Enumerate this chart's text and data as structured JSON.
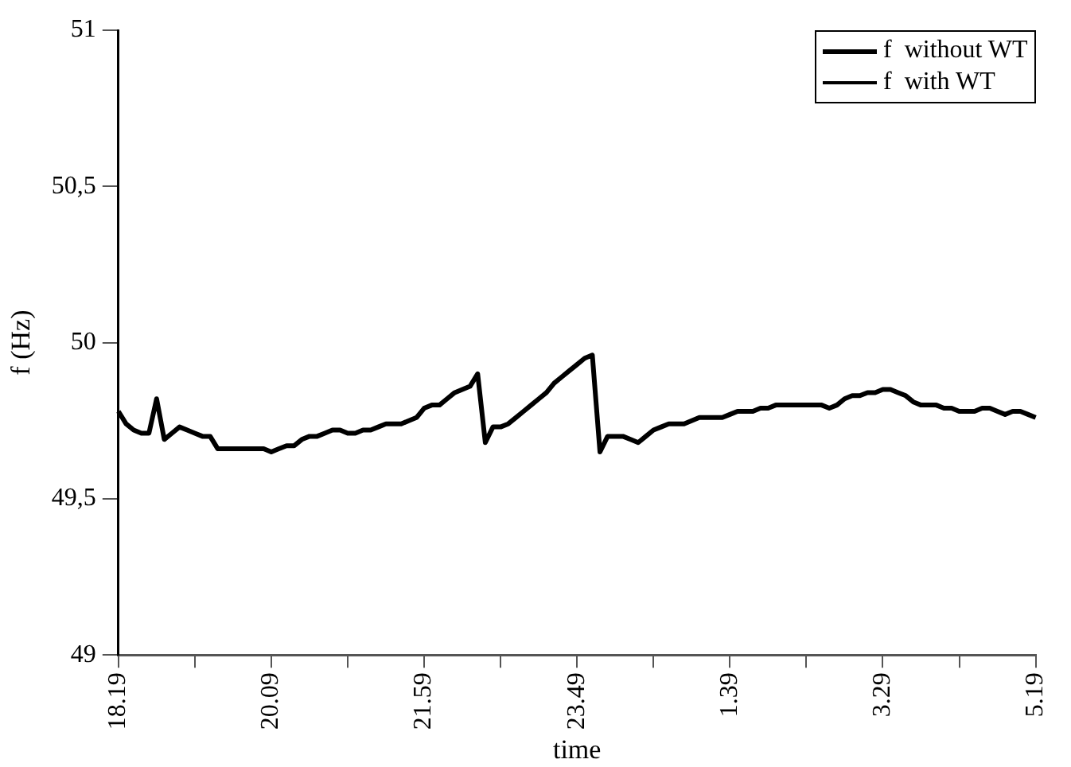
{
  "chart_data": {
    "type": "line",
    "xlabel": "time",
    "ylabel": "f (Hz)",
    "legend": "top right",
    "grid": false,
    "marker": "none",
    "line_style": "solid",
    "ylim": [
      49,
      51
    ],
    "yticks": [
      49,
      {
        "value": 49.5,
        "label": "49,5"
      },
      50,
      {
        "value": 50.5,
        "label": "50,5"
      },
      51
    ],
    "categories": [
      "18.19",
      null,
      null,
      null,
      null,
      null,
      null,
      null,
      null,
      null,
      null,
      null,
      null,
      null,
      null,
      null,
      null,
      null,
      null,
      null,
      "20.09",
      null,
      null,
      null,
      null,
      null,
      null,
      null,
      null,
      null,
      null,
      null,
      null,
      null,
      null,
      null,
      null,
      null,
      null,
      null,
      "21.59",
      null,
      null,
      null,
      null,
      null,
      null,
      null,
      null,
      null,
      null,
      null,
      null,
      null,
      null,
      null,
      null,
      null,
      null,
      null,
      "23.49",
      null,
      null,
      null,
      null,
      null,
      null,
      null,
      null,
      null,
      null,
      null,
      null,
      null,
      null,
      null,
      null,
      null,
      null,
      null,
      "1.39",
      null,
      null,
      null,
      null,
      null,
      null,
      null,
      null,
      null,
      null,
      null,
      null,
      null,
      null,
      null,
      null,
      null,
      null,
      null,
      "3.29",
      null,
      null,
      null,
      null,
      null,
      null,
      null,
      null,
      null,
      null,
      null,
      null,
      null,
      null,
      null,
      null,
      null,
      null,
      null,
      "5.19"
    ],
    "series": [
      {
        "name": "f  without WT",
        "color": "#000000",
        "values": [
          49.78,
          49.74,
          49.72,
          49.71,
          49.71,
          49.82,
          49.69,
          49.71,
          49.73,
          49.72,
          49.71,
          49.7,
          49.7,
          49.66,
          49.66,
          49.66,
          49.66,
          49.66,
          49.66,
          49.66,
          49.65,
          49.66,
          49.67,
          49.67,
          49.69,
          49.7,
          49.7,
          49.71,
          49.72,
          49.72,
          49.71,
          49.71,
          49.72,
          49.72,
          49.73,
          49.74,
          49.74,
          49.74,
          49.75,
          49.76,
          49.79,
          49.8,
          49.8,
          49.82,
          49.84,
          49.85,
          49.86,
          49.9,
          49.68,
          49.73,
          49.73,
          49.74,
          49.76,
          49.78,
          49.8,
          49.82,
          49.84,
          49.87,
          49.89,
          49.91,
          49.93,
          49.95,
          49.96,
          49.65,
          49.7,
          49.7,
          49.7,
          49.69,
          49.68,
          49.7,
          49.72,
          49.73,
          49.74,
          49.74,
          49.74,
          49.75,
          49.76,
          49.76,
          49.76,
          49.76,
          49.77,
          49.78,
          49.78,
          49.78,
          49.79,
          49.79,
          49.8,
          49.8,
          49.8,
          49.8,
          49.8,
          49.8,
          49.8,
          49.79,
          49.8,
          49.82,
          49.83,
          49.83,
          49.84,
          49.84,
          49.85,
          49.85,
          49.84,
          49.83,
          49.81,
          49.8,
          49.8,
          49.8,
          49.79,
          49.79,
          49.78,
          49.78,
          49.78,
          49.79,
          49.79,
          49.78,
          49.77,
          49.78,
          49.78,
          49.77,
          49.76
        ]
      },
      {
        "name": "f  with WT",
        "color": "#000000",
        "values": [
          null,
          null,
          null,
          null,
          null,
          null,
          null,
          null,
          null,
          null,
          null,
          null,
          null,
          null,
          null,
          null,
          null,
          null,
          null,
          null,
          null,
          null,
          null,
          null,
          null,
          null,
          null,
          null,
          null,
          null,
          null,
          null,
          null,
          null,
          null,
          null,
          null,
          null,
          null,
          null,
          null,
          null,
          null,
          null,
          null,
          null,
          null,
          null,
          null,
          null,
          null,
          null,
          null,
          null,
          null,
          null,
          null,
          null,
          null,
          null,
          null,
          null,
          null,
          null,
          null,
          null,
          null,
          null,
          null,
          null,
          null,
          null,
          null,
          null,
          null,
          null,
          null,
          null,
          null,
          null,
          null,
          null,
          null,
          null,
          null,
          null,
          null,
          null,
          null,
          null,
          null,
          null,
          null,
          null,
          null,
          null,
          null,
          null,
          null,
          null,
          null,
          null,
          null,
          null,
          null,
          null,
          null,
          null,
          null,
          null,
          null,
          null,
          null,
          null,
          null,
          null,
          null,
          null,
          null,
          null,
          null
        ]
      }
    ]
  }
}
